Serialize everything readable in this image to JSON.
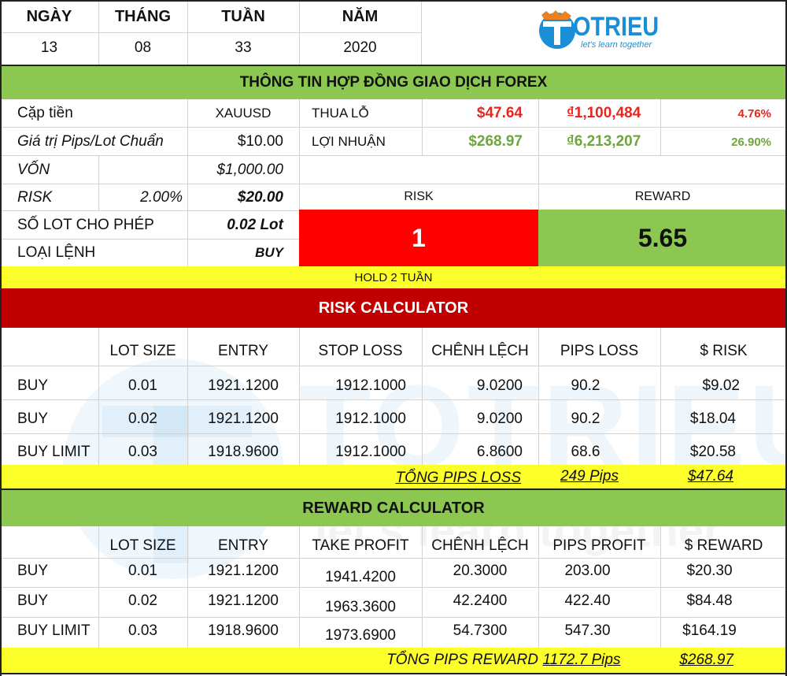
{
  "date_header": {
    "labels": [
      "NGÀY",
      "THÁNG",
      "TUẦN",
      "NĂM"
    ],
    "values": [
      "13",
      "08",
      "33",
      "2020"
    ]
  },
  "logo": {
    "brand": "OTRIEU",
    "tagline": "let's learn together",
    "watermark_brand": "TOTRIEU",
    "watermark_tagline": "let's learn together"
  },
  "contract": {
    "title": "THÔNG TIN HỢP ĐỒNG GIAO DỊCH FOREX",
    "pair_label": "Cặp tiền",
    "pair_value": "XAUUSD",
    "pip_label": "Giá trị Pips/Lot Chuẩn",
    "pip_value": "$10.00",
    "capital_label": "VỐN",
    "capital_value": "$1,000.00",
    "risk_label": "RISK",
    "risk_pct": "2.00%",
    "risk_value": "$20.00",
    "lot_label": "SỐ LOT CHO PHÉP",
    "lot_value": "0.02 Lot",
    "order_label": "LOẠI LỆNH",
    "order_value": "BUY",
    "loss_label": "THUA LỖ",
    "loss_usd": "$47.64",
    "loss_vnd": "₫1,100,484",
    "loss_pct": "4.76%",
    "profit_label": "LỢI NHUẬN",
    "profit_usd": "$268.97",
    "profit_vnd": "₫6,213,207",
    "profit_pct": "26.90%",
    "rr_risk_label": "RISK",
    "rr_reward_label": "REWARD",
    "rr_risk_value": "1",
    "rr_reward_value": "5.65",
    "hold_note": "HOLD 2 TUẦN"
  },
  "risk_calc": {
    "title": "RISK CALCULATOR",
    "headers": [
      "",
      "LOT SIZE",
      "ENTRY",
      "STOP LOSS",
      "CHÊNH LỆCH",
      "PIPS LOSS",
      "$ RISK"
    ],
    "rows": [
      [
        "BUY",
        "0.01",
        "1921.1200",
        "1912.1000",
        "9.0200",
        "90.2",
        "$9.02"
      ],
      [
        "BUY",
        "0.02",
        "1921.1200",
        "1912.1000",
        "9.0200",
        "90.2",
        "$18.04"
      ],
      [
        "BUY LIMIT",
        "0.03",
        "1918.9600",
        "1912.1000",
        "6.8600",
        "68.6",
        "$20.58"
      ]
    ],
    "total_label": "TỔNG PIPS LOSS",
    "total_pips": "249 Pips",
    "total_value": "$47.64"
  },
  "reward_calc": {
    "title": "REWARD CALCULATOR",
    "headers": [
      "",
      "LOT SIZE",
      "ENTRY",
      "TAKE PROFIT",
      "CHÊNH LỆCH",
      "PIPS PROFIT",
      "$ REWARD"
    ],
    "rows": [
      [
        "BUY",
        "0.01",
        "1921.1200",
        "1941.4200",
        "20.3000",
        "203.00",
        "$20.30"
      ],
      [
        "BUY",
        "0.02",
        "1921.1200",
        "1963.3600",
        "42.2400",
        "422.40",
        "$84.48"
      ],
      [
        "BUY LIMIT",
        "0.03",
        "1918.9600",
        "1973.6900",
        "54.7300",
        "547.30",
        "$164.19"
      ]
    ],
    "total_label": "TỔNG PIPS REWARD",
    "total_pips": "1172.7 Pips",
    "total_value": "$268.97"
  },
  "colors": {
    "green": "#8cc751",
    "yellow": "#fdff2b",
    "dark_red": "#c00000",
    "bright_red": "#fe0000",
    "logo_blue": "#1b8fd6",
    "logo_orange": "#f0801c"
  }
}
